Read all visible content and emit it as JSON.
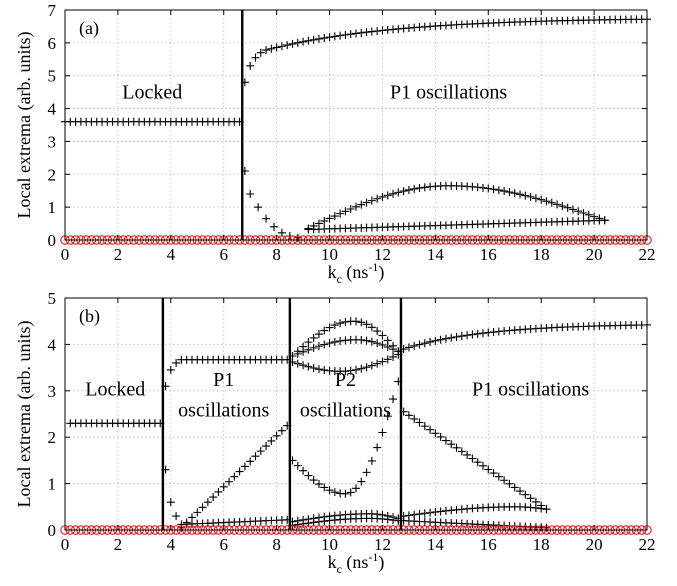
{
  "chart_data": [
    {
      "type": "scatter",
      "panel_label": "(a)",
      "xlabel": "k_c (ns^-1)",
      "ylabel": "Local extrema (arb. units)",
      "xlim": [
        0,
        22
      ],
      "ylim": [
        0,
        7
      ],
      "xticks": [
        0,
        2,
        4,
        6,
        8,
        10,
        12,
        14,
        16,
        18,
        20,
        22
      ],
      "yticks": [
        0,
        1,
        2,
        3,
        4,
        5,
        6,
        7
      ],
      "grid": true,
      "boundaries": [
        6.7
      ],
      "annotations": [
        {
          "text": "Locked",
          "x": 3.3,
          "y": 4.3
        },
        {
          "text": "P1 oscillations",
          "x": 14.5,
          "y": 4.3
        }
      ],
      "series": [
        {
          "marker": "plus",
          "color": "#000000",
          "x_from": 0,
          "x_to": 6.6,
          "step": 0.2,
          "y": 3.6
        },
        {
          "marker": "plus",
          "color": "#000000",
          "points": [
            [
              6.8,
              4.8
            ],
            [
              7.0,
              5.3
            ],
            [
              7.2,
              5.55
            ],
            [
              7.4,
              5.7
            ],
            [
              7.6,
              5.78
            ]
          ]
        },
        {
          "marker": "plus",
          "color": "#000000",
          "x_from": 7.8,
          "x_to": 22,
          "step": 0.2,
          "y_start": 5.82,
          "y_end": 6.72,
          "shape": "rise"
        },
        {
          "marker": "plus",
          "color": "#000000",
          "points": [
            [
              6.8,
              2.1
            ],
            [
              7.0,
              1.4
            ],
            [
              7.3,
              1.0
            ],
            [
              7.6,
              0.65
            ],
            [
              7.9,
              0.4
            ],
            [
              8.2,
              0.22
            ],
            [
              8.5,
              0.12
            ],
            [
              8.8,
              0.07
            ]
          ]
        },
        {
          "marker": "plus",
          "color": "#000000",
          "x_from": 9.2,
          "x_to": 20.4,
          "step": 0.2,
          "peak_x": 14.5,
          "peak_y": 1.65,
          "y_start": 0.35,
          "y_end": 0.6,
          "shape": "hump"
        },
        {
          "marker": "plus",
          "color": "#000000",
          "x_from": 9.2,
          "x_to": 20.4,
          "step": 0.2,
          "y_start": 0.32,
          "y_end": 0.6,
          "shape": "linear"
        },
        {
          "marker": "circle",
          "color": "#d62020",
          "x_from": 0,
          "x_to": 22,
          "step": 0.2,
          "y": 0.0
        }
      ]
    },
    {
      "type": "scatter",
      "panel_label": "(b)",
      "xlabel": "k_c (ns^-1)",
      "ylabel": "Local extrema (arb. units)",
      "xlim": [
        0,
        22
      ],
      "ylim": [
        0,
        5
      ],
      "xticks": [
        0,
        2,
        4,
        6,
        8,
        10,
        12,
        14,
        16,
        18,
        20,
        22
      ],
      "yticks": [
        0,
        1,
        2,
        3,
        4,
        5
      ],
      "grid": true,
      "boundaries": [
        3.7,
        8.5,
        12.7
      ],
      "annotations": [
        {
          "text": "Locked",
          "x": 1.9,
          "y": 2.9
        },
        {
          "text": "P1",
          "x": 6.0,
          "y": 3.1
        },
        {
          "text": "oscillations",
          "x": 6.0,
          "y": 2.45
        },
        {
          "text": "P2",
          "x": 10.6,
          "y": 3.1
        },
        {
          "text": "oscillations",
          "x": 10.6,
          "y": 2.45
        },
        {
          "text": "P1 oscillations",
          "x": 17.6,
          "y": 2.9
        }
      ],
      "series": [
        {
          "marker": "plus",
          "color": "#000000",
          "x_from": 0.2,
          "x_to": 3.6,
          "step": 0.2,
          "y": 2.3
        },
        {
          "marker": "plus",
          "color": "#000000",
          "points": [
            [
              3.8,
              1.3
            ],
            [
              4.0,
              0.6
            ],
            [
              4.2,
              0.3
            ]
          ]
        },
        {
          "marker": "plus",
          "color": "#000000",
          "points": [
            [
              3.8,
              3.1
            ],
            [
              4.0,
              3.45
            ],
            [
              4.2,
              3.6
            ]
          ]
        },
        {
          "marker": "plus",
          "color": "#000000",
          "x_from": 4.4,
          "x_to": 8.4,
          "step": 0.2,
          "y": 3.67
        },
        {
          "marker": "plus",
          "color": "#000000",
          "x_from": 4.4,
          "x_to": 8.4,
          "step": 0.2,
          "y_start": 0.05,
          "y_end": 2.25,
          "shape": "linear"
        },
        {
          "marker": "plus",
          "color": "#000000",
          "x_from": 4.4,
          "x_to": 8.4,
          "step": 0.2,
          "y_start": 0.12,
          "y_end": 0.22,
          "shape": "linear"
        },
        {
          "marker": "plus",
          "color": "#000000",
          "x_from": 8.6,
          "x_to": 12.6,
          "step": 0.2,
          "peak_x": 10.9,
          "peak_y": 4.5,
          "y_start": 3.75,
          "y_end": 3.85,
          "shape": "hump"
        },
        {
          "marker": "plus",
          "color": "#000000",
          "x_from": 8.6,
          "x_to": 12.6,
          "step": 0.2,
          "peak_x": 11.0,
          "peak_y": 4.1,
          "y_start": 3.75,
          "y_end": 3.85,
          "shape": "hump"
        },
        {
          "marker": "plus",
          "color": "#000000",
          "x_from": 8.6,
          "x_to": 12.6,
          "step": 0.2,
          "valley_x": 10.4,
          "valley_y": 3.42,
          "y_start": 3.62,
          "y_end": 3.78,
          "shape": "valley"
        },
        {
          "marker": "plus",
          "color": "#000000",
          "x_from": 8.6,
          "x_to": 12.6,
          "step": 0.2,
          "valley_x": 10.6,
          "valley_y": 0.78,
          "y_start": 1.5,
          "y_end": 3.2,
          "shape": "valley"
        },
        {
          "marker": "plus",
          "color": "#000000",
          "x_from": 8.6,
          "x_to": 12.6,
          "step": 0.2,
          "peak_x": 11.5,
          "peak_y": 0.35,
          "y_start": 0.18,
          "y_end": 0.25,
          "shape": "hump"
        },
        {
          "marker": "plus",
          "color": "#000000",
          "x_from": 8.6,
          "x_to": 12.6,
          "step": 0.2,
          "peak_x": 11.5,
          "peak_y": 0.25,
          "y_start": 0.1,
          "y_end": 0.2,
          "shape": "hump"
        },
        {
          "marker": "plus",
          "color": "#000000",
          "x_from": 12.8,
          "x_to": 22,
          "step": 0.2,
          "y_start": 3.9,
          "y_end": 4.42,
          "shape": "rise"
        },
        {
          "marker": "plus",
          "color": "#000000",
          "x_from": 12.8,
          "x_to": 18.2,
          "step": 0.2,
          "y_start": 2.55,
          "y_end": 0.45,
          "shape": "linear"
        },
        {
          "marker": "plus",
          "color": "#000000",
          "x_from": 12.8,
          "x_to": 18.2,
          "step": 0.2,
          "peak_x": 17.0,
          "peak_y": 0.5,
          "y_start": 0.3,
          "y_end": 0.45,
          "shape": "hump"
        },
        {
          "marker": "plus",
          "color": "#000000",
          "x_from": 12.8,
          "x_to": 18.2,
          "step": 0.2,
          "y_start": 0.2,
          "y_end": 0.05,
          "shape": "linear"
        },
        {
          "marker": "circle",
          "color": "#d62020",
          "x_from": 0,
          "x_to": 22,
          "step": 0.2,
          "y": 0.0
        }
      ]
    }
  ]
}
